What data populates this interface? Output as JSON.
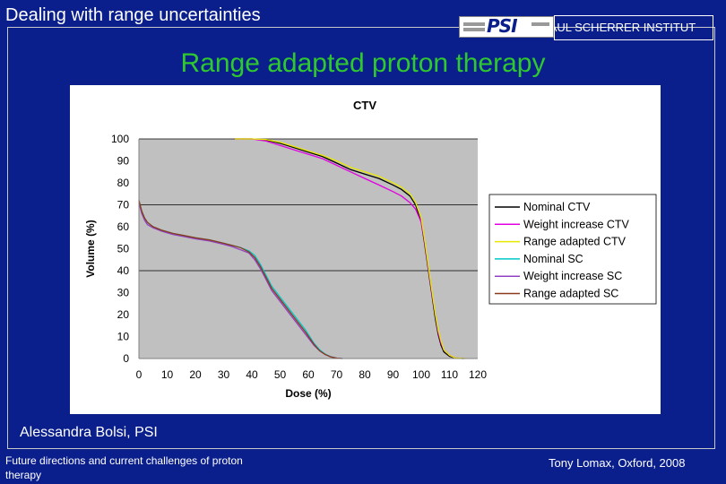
{
  "header": {
    "section_title": "Dealing with range uncertainties",
    "logo_text": "PSI",
    "institute": "PAUL SCHERRER INSTITUT"
  },
  "slide_title": "Range adapted proton therapy",
  "author": "Alessandra Bolsi, PSI",
  "footer": {
    "left": "Future directions and current challenges of proton therapy",
    "right": "Tony Lomax, Oxford, 2008"
  },
  "colors": {
    "background": "#0a1f8c",
    "title": "#2fc82f",
    "plot_area": "#c0c0c0"
  },
  "chart_data": {
    "type": "line",
    "title": "CTV",
    "xlabel": "Dose (%)",
    "ylabel": "Volume (%)",
    "xlim": [
      0,
      120
    ],
    "ylim": [
      0,
      100
    ],
    "xticks": [
      0,
      10,
      20,
      30,
      40,
      50,
      60,
      70,
      80,
      90,
      100,
      110,
      120
    ],
    "yticks": [
      0,
      10,
      20,
      30,
      40,
      50,
      60,
      70,
      80,
      90,
      100
    ],
    "gridlines_y": [
      40,
      70,
      100
    ],
    "legend_position": "right",
    "series": [
      {
        "name": "Nominal CTV",
        "color": "#000000",
        "x": [
          34,
          40,
          45,
          50,
          55,
          60,
          65,
          70,
          75,
          80,
          85,
          90,
          93,
          96,
          98,
          100,
          101,
          102,
          103,
          104,
          105,
          106,
          107,
          108,
          110,
          112,
          115
        ],
        "y": [
          100,
          100,
          99.5,
          98,
          96,
          94,
          92,
          89,
          86,
          84,
          82,
          79,
          77,
          74,
          70,
          62,
          54,
          45,
          36,
          27,
          18,
          11,
          6,
          3,
          1,
          0.2,
          0
        ]
      },
      {
        "name": "Weight increase CTV",
        "color": "#e000e0",
        "x": [
          34,
          40,
          45,
          50,
          55,
          60,
          65,
          70,
          75,
          80,
          85,
          90,
          93,
          96,
          98,
          100,
          101,
          102,
          103,
          104,
          105,
          106,
          107,
          108,
          110,
          112,
          115
        ],
        "y": [
          100,
          100,
          99,
          97,
          95,
          93,
          91,
          88,
          85,
          82,
          79,
          76,
          74,
          71,
          68,
          62,
          55,
          46,
          37,
          28,
          20,
          12,
          7,
          4,
          1.5,
          0.3,
          0
        ]
      },
      {
        "name": "Range adapted CTV",
        "color": "#e8e800",
        "x": [
          34,
          40,
          45,
          50,
          55,
          60,
          65,
          70,
          75,
          80,
          85,
          90,
          93,
          96,
          98,
          100,
          101,
          102,
          103,
          104,
          105,
          106,
          107,
          108,
          110,
          112,
          116
        ],
        "y": [
          100,
          100,
          99.7,
          98.5,
          96.5,
          94.5,
          92.5,
          90,
          87,
          85,
          83,
          80,
          78,
          75,
          71,
          64,
          56,
          47,
          38,
          29,
          20,
          13,
          8,
          4,
          1.5,
          0.3,
          0
        ]
      },
      {
        "name": "Nominal SC",
        "color": "#00c8c8",
        "x": [
          0,
          1,
          2,
          3,
          5,
          8,
          12,
          16,
          20,
          25,
          30,
          33,
          36,
          39,
          41,
          43,
          45,
          47,
          50,
          53,
          56,
          59,
          62,
          64,
          66,
          68,
          70,
          72
        ],
        "y": [
          72,
          67,
          64,
          62,
          60,
          58.5,
          57,
          56,
          55,
          54,
          52.5,
          51.5,
          50.5,
          49,
          47,
          43,
          38,
          33,
          28,
          23,
          18,
          13,
          7,
          4,
          2,
          0.8,
          0.2,
          0
        ]
      },
      {
        "name": "Weight increase SC",
        "color": "#9040c0",
        "x": [
          0,
          1,
          2,
          3,
          5,
          8,
          12,
          16,
          20,
          25,
          30,
          33,
          36,
          39,
          41,
          43,
          45,
          47,
          50,
          53,
          56,
          59,
          62,
          64,
          66,
          68,
          70,
          72
        ],
        "y": [
          71,
          66,
          63,
          61,
          59.5,
          58,
          56.5,
          55.5,
          54.5,
          53.5,
          52,
          51,
          49.5,
          48,
          45,
          41,
          36,
          31,
          26,
          21,
          16,
          11,
          6,
          3.5,
          1.8,
          0.7,
          0.2,
          0
        ]
      },
      {
        "name": "Range adapted SC",
        "color": "#8b3a1a",
        "x": [
          0,
          1,
          2,
          3,
          5,
          8,
          12,
          16,
          20,
          25,
          30,
          33,
          36,
          39,
          41,
          43,
          45,
          47,
          50,
          53,
          56,
          59,
          62,
          64,
          66,
          68,
          70,
          72
        ],
        "y": [
          72,
          67,
          64,
          62,
          60,
          58.5,
          57,
          56,
          55,
          54,
          52.5,
          51.5,
          50.5,
          48.5,
          46,
          42,
          37,
          32,
          27,
          22,
          17,
          12,
          6.5,
          3.5,
          1.8,
          0.7,
          0.2,
          0
        ]
      }
    ]
  }
}
